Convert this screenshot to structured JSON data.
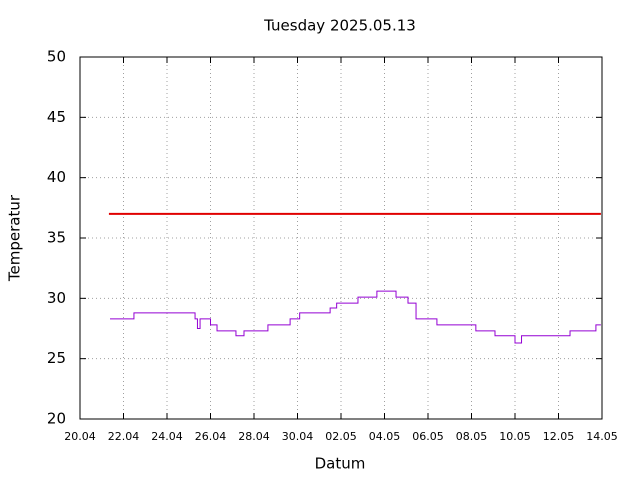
{
  "chart_data": {
    "type": "line",
    "title": "Tuesday 2025.05.13",
    "x_label": "Datum",
    "y_label": "Temperatur",
    "xlim": [
      0,
      24
    ],
    "ylim": [
      20,
      50
    ],
    "xticks": [
      {
        "value": 0,
        "label": "20.04"
      },
      {
        "value": 2,
        "label": "22.04"
      },
      {
        "value": 4,
        "label": "24.04"
      },
      {
        "value": 6,
        "label": "26.04"
      },
      {
        "value": 8,
        "label": "28.04"
      },
      {
        "value": 10,
        "label": "30.04"
      },
      {
        "value": 12,
        "label": "02.05"
      },
      {
        "value": 14,
        "label": "04.05"
      },
      {
        "value": 16,
        "label": "06.05"
      },
      {
        "value": 18,
        "label": "08.05"
      },
      {
        "value": 20,
        "label": "10.05"
      },
      {
        "value": 22,
        "label": "12.05"
      },
      {
        "value": 24,
        "label": "14.05"
      }
    ],
    "yticks": [
      20,
      25,
      30,
      35,
      40,
      45,
      50
    ],
    "grid": true,
    "series": [
      {
        "color": "#e00000",
        "x": [
          1.33,
          23.95
        ],
        "values": [
          37,
          37
        ]
      },
      {
        "color": "#9400d3",
        "x": [
          1.38,
          2.48,
          2.48,
          5.29,
          5.29,
          5.4,
          5.4,
          5.52,
          5.52,
          6.0,
          6.0,
          6.3,
          6.3,
          7.17,
          7.17,
          7.54,
          7.54,
          8.64,
          8.64,
          9.66,
          9.66,
          10.1,
          10.1,
          11.5,
          11.5,
          11.8,
          11.8,
          12.78,
          12.78,
          13.65,
          13.65,
          14.53,
          14.53,
          15.08,
          15.08,
          15.45,
          15.45,
          16.41,
          16.41,
          18.2,
          18.2,
          19.08,
          19.08,
          20.0,
          20.0,
          20.3,
          20.3,
          22.53,
          22.53,
          23.72,
          23.72,
          23.95
        ],
        "values": [
          28.3,
          28.3,
          28.8,
          28.8,
          28.3,
          28.3,
          27.5,
          27.5,
          28.3,
          28.3,
          27.8,
          27.8,
          27.3,
          27.3,
          26.9,
          26.9,
          27.3,
          27.3,
          27.8,
          27.8,
          28.3,
          28.3,
          28.8,
          28.8,
          29.2,
          29.2,
          29.6,
          29.6,
          30.1,
          30.1,
          30.6,
          30.6,
          30.1,
          30.1,
          29.6,
          29.6,
          28.3,
          28.3,
          27.8,
          27.8,
          27.3,
          27.3,
          26.9,
          26.9,
          26.3,
          26.3,
          26.9,
          26.9,
          27.3,
          27.3,
          27.8,
          27.8
        ]
      }
    ]
  }
}
